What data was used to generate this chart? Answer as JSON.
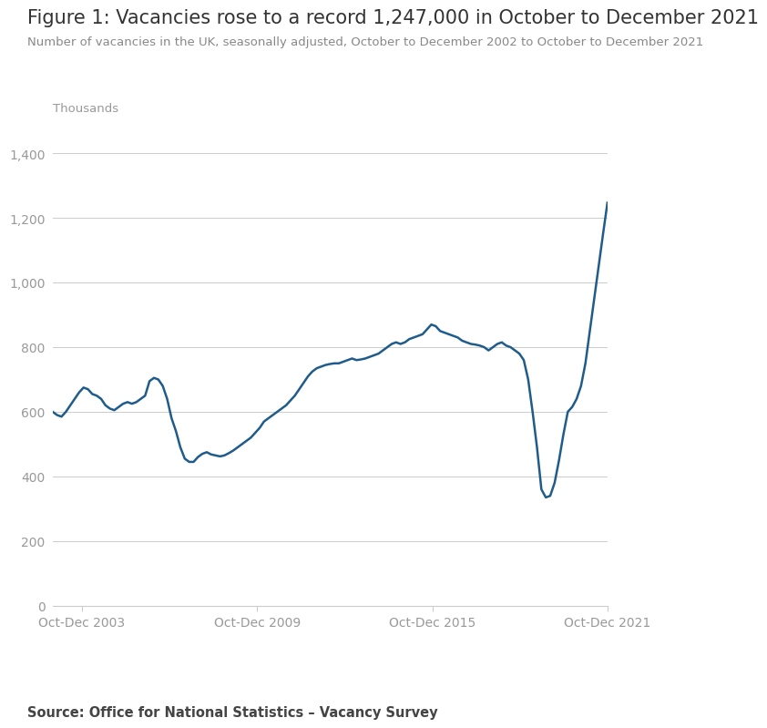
{
  "title": "Figure 1: Vacancies rose to a record 1,247,000 in October to December 2021",
  "subtitle": "Number of vacancies in the UK, seasonally adjusted, October to December 2002 to October to December 2021",
  "ylabel_text": "Thousands",
  "source": "Source: Office for National Statistics – Vacancy Survey",
  "line_color": "#1f5c8b",
  "line_width": 1.8,
  "background_color": "#ffffff",
  "grid_color": "#cccccc",
  "title_fontsize": 15,
  "subtitle_fontsize": 9.5,
  "source_fontsize": 10.5,
  "tick_label_color": "#999999",
  "title_color": "#333333",
  "subtitle_color": "#888888",
  "source_color": "#444444",
  "yticks": [
    0,
    200,
    400,
    600,
    800,
    1000,
    1200,
    1400
  ],
  "xtick_labels": [
    "Oct-Dec 2003",
    "Oct-Dec 2009",
    "Oct-Dec 2015",
    "Oct-Dec 2021"
  ],
  "ylim": [
    0,
    1450
  ],
  "values": [
    600,
    590,
    585,
    600,
    620,
    640,
    660,
    675,
    670,
    655,
    650,
    640,
    620,
    610,
    605,
    615,
    625,
    630,
    625,
    630,
    640,
    650,
    695,
    705,
    700,
    680,
    640,
    580,
    540,
    490,
    455,
    445,
    445,
    460,
    470,
    475,
    468,
    465,
    462,
    465,
    472,
    480,
    490,
    500,
    510,
    520,
    535,
    550,
    570,
    580,
    590,
    600,
    610,
    620,
    635,
    650,
    670,
    690,
    710,
    725,
    735,
    740,
    745,
    748,
    750,
    750,
    755,
    760,
    765,
    760,
    762,
    765,
    770,
    775,
    780,
    790,
    800,
    810,
    815,
    810,
    815,
    825,
    830,
    835,
    840,
    855,
    870,
    865,
    850,
    845,
    840,
    835,
    830,
    820,
    815,
    810,
    808,
    805,
    800,
    790,
    800,
    810,
    815,
    805,
    800,
    790,
    780,
    760,
    700,
    600,
    490,
    360,
    335,
    340,
    380,
    450,
    530,
    600,
    615,
    640,
    680,
    750,
    850,
    950,
    1050,
    1150,
    1247
  ],
  "n_years": 19,
  "start_year": 2002,
  "xtick_years": [
    2003,
    2009,
    2015,
    2021
  ]
}
